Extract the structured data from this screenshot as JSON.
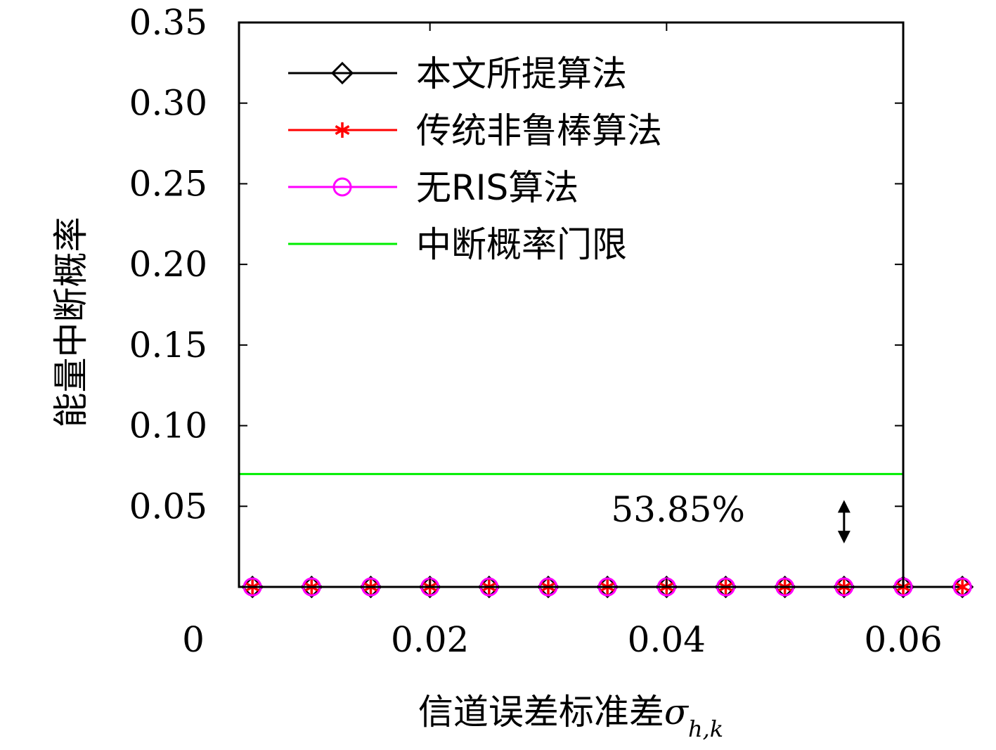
{
  "chart_data": {
    "type": "line",
    "title": "",
    "xlabel": "信道误差标准差",
    "xlabel_symbol": "σ",
    "xlabel_subscript": "h,k",
    "ylabel": "能量中断概率",
    "xlim": [
      0,
      0.06
    ],
    "ylim": [
      0,
      0.35
    ],
    "x_ticks": [
      0,
      0.02,
      0.04,
      0.06
    ],
    "x_tick_labels": [
      "0",
      "0.02",
      "0.04",
      "0.06"
    ],
    "y_ticks": [
      0.05,
      0.1,
      0.15,
      0.2,
      0.25,
      0.3,
      0.35
    ],
    "y_tick_labels": [
      "0.05",
      "0.10",
      "0.15",
      "0.20",
      "0.25",
      "0.30",
      "0.35"
    ],
    "grid": false,
    "legend_position": "top-left",
    "x": [
      0.005,
      0.01,
      0.015,
      0.02,
      0.025,
      0.03,
      0.035,
      0.04,
      0.045,
      0.05,
      0.055,
      0.06,
      0.065
    ],
    "series": [
      {
        "name": "本文所提算法",
        "color": "#000000",
        "marker": "diamond",
        "values": [
          0.0,
          0.0,
          0.0,
          0.0,
          0.0,
          0.0,
          0.0,
          0.0,
          0.0,
          0.0,
          0.0,
          0.0,
          0.0
        ]
      },
      {
        "name": "传统非鲁棒算法",
        "color": "#ff0000",
        "marker": "asterisk",
        "values": [
          0.0,
          0.0,
          0.0,
          0.0,
          0.0,
          0.0,
          0.0,
          0.0,
          0.0,
          0.0,
          0.0,
          0.0,
          0.0
        ]
      },
      {
        "name": "无RIS算法",
        "color": "#ff00ff",
        "marker": "circle",
        "values": [
          0.0,
          0.0,
          0.0,
          0.0,
          0.0,
          0.0,
          0.0,
          0.0,
          0.0,
          0.0,
          0.0,
          0.0,
          0.0
        ]
      }
    ],
    "threshold": {
      "name": "中断概率门限",
      "color": "#00ee00",
      "value": 0.07
    },
    "annotation": {
      "text": "53.85%",
      "x": 0.055,
      "y_from": 0.06,
      "y_to": 0.02
    }
  }
}
